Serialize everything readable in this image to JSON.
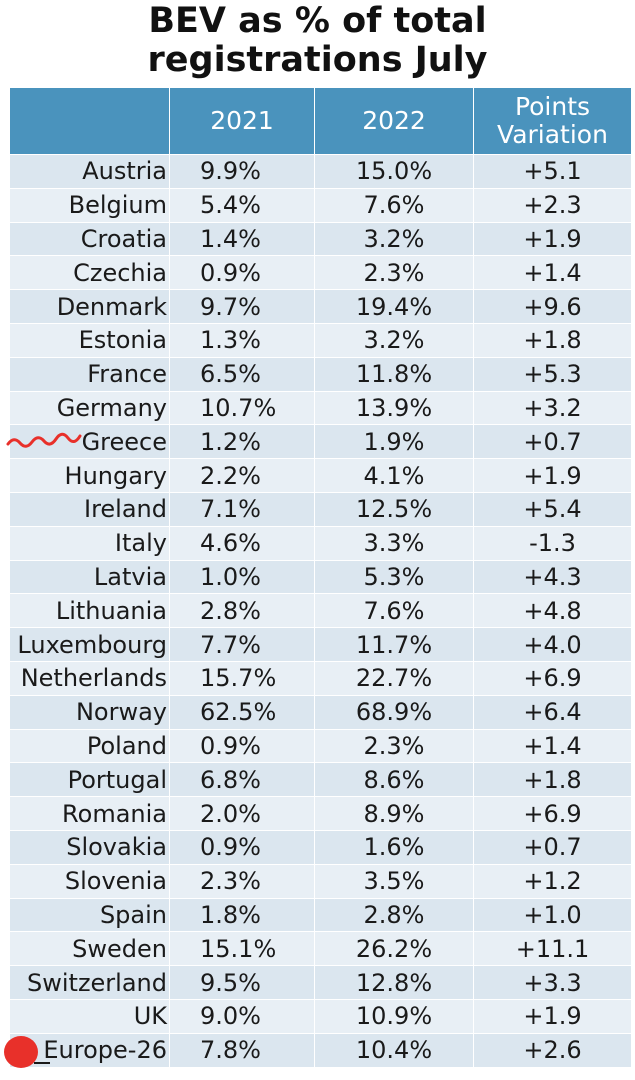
{
  "chart_data": {
    "type": "table",
    "title_line1": "BEV as % of total",
    "title_line2": "registrations July",
    "columns": [
      "",
      "2021",
      "2022",
      "Points Variation"
    ],
    "header_variation_line1": "Points",
    "header_variation_line2": "Variation",
    "rows": [
      {
        "country": "Austria",
        "y2021": "9.9%",
        "y2022": "15.0%",
        "variation": "+5.1"
      },
      {
        "country": "Belgium",
        "y2021": "5.4%",
        "y2022": "7.6%",
        "variation": "+2.3"
      },
      {
        "country": "Croatia",
        "y2021": "1.4%",
        "y2022": "3.2%",
        "variation": "+1.9"
      },
      {
        "country": "Czechia",
        "y2021": "0.9%",
        "y2022": "2.3%",
        "variation": "+1.4"
      },
      {
        "country": "Denmark",
        "y2021": "9.7%",
        "y2022": "19.4%",
        "variation": "+9.6"
      },
      {
        "country": "Estonia",
        "y2021": "1.3%",
        "y2022": "3.2%",
        "variation": "+1.8"
      },
      {
        "country": "France",
        "y2021": "6.5%",
        "y2022": "11.8%",
        "variation": "+5.3"
      },
      {
        "country": "Germany",
        "y2021": "10.7%",
        "y2022": "13.9%",
        "variation": "+3.2"
      },
      {
        "country": "Greece",
        "y2021": "1.2%",
        "y2022": "1.9%",
        "variation": "+0.7"
      },
      {
        "country": "Hungary",
        "y2021": "2.2%",
        "y2022": "4.1%",
        "variation": "+1.9"
      },
      {
        "country": "Ireland",
        "y2021": "7.1%",
        "y2022": "12.5%",
        "variation": "+5.4"
      },
      {
        "country": "Italy",
        "y2021": "4.6%",
        "y2022": "3.3%",
        "variation": "-1.3"
      },
      {
        "country": "Latvia",
        "y2021": "1.0%",
        "y2022": "5.3%",
        "variation": "+4.3"
      },
      {
        "country": "Lithuania",
        "y2021": "2.8%",
        "y2022": "7.6%",
        "variation": "+4.8"
      },
      {
        "country": "Luxembourg",
        "y2021": "7.7%",
        "y2022": "11.7%",
        "variation": "+4.0"
      },
      {
        "country": "Netherlands",
        "y2021": "15.7%",
        "y2022": "22.7%",
        "variation": "+6.9"
      },
      {
        "country": "Norway",
        "y2021": "62.5%",
        "y2022": "68.9%",
        "variation": "+6.4"
      },
      {
        "country": "Poland",
        "y2021": "0.9%",
        "y2022": "2.3%",
        "variation": "+1.4"
      },
      {
        "country": "Portugal",
        "y2021": "6.8%",
        "y2022": "8.6%",
        "variation": "+1.8"
      },
      {
        "country": "Romania",
        "y2021": "2.0%",
        "y2022": "8.9%",
        "variation": "+6.9"
      },
      {
        "country": "Slovakia",
        "y2021": "0.9%",
        "y2022": "1.6%",
        "variation": "+0.7"
      },
      {
        "country": "Slovenia",
        "y2021": "2.3%",
        "y2022": "3.5%",
        "variation": "+1.2"
      },
      {
        "country": "Spain",
        "y2021": "1.8%",
        "y2022": "2.8%",
        "variation": "+1.0"
      },
      {
        "country": "Sweden",
        "y2021": "15.1%",
        "y2022": "26.2%",
        "variation": "+11.1"
      },
      {
        "country": "Switzerland",
        "y2021": "9.5%",
        "y2022": "12.8%",
        "variation": "+3.3"
      },
      {
        "country": "UK",
        "y2021": "9.0%",
        "y2022": "10.9%",
        "variation": "+1.9"
      },
      {
        "country": "Europe-26",
        "y2021": "7.8%",
        "y2022": "10.4%",
        "variation": "+2.6"
      }
    ]
  },
  "colors": {
    "header_bg": "#4a93bd",
    "row_odd": "#dbe6ef",
    "row_even": "#e8eff5",
    "annotation_red": "#e8302a"
  }
}
